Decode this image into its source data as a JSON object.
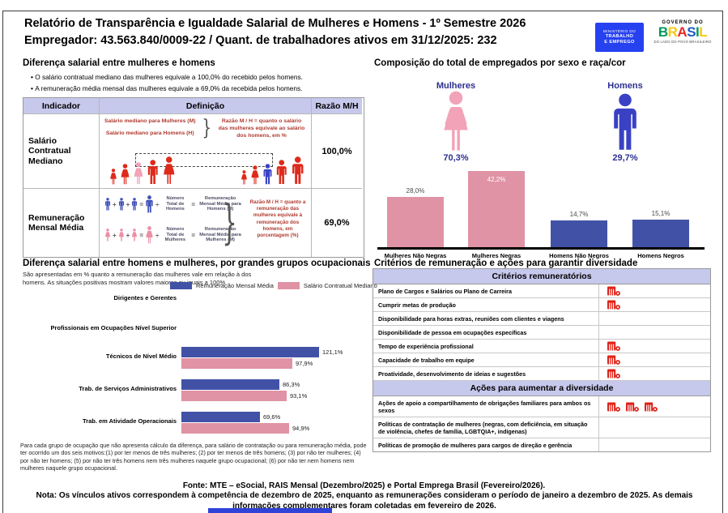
{
  "palette": {
    "lavender_header": "#C6C8EC",
    "bar_blue": "#4152A6",
    "bar_pink": "#E093A4",
    "icon_blue": "#3A41C4",
    "icon_pink": "#EE92A6",
    "figure_red": "#DE2A1B",
    "navy_text": "#2D3091",
    "mte_logo_blue": "#2641F0",
    "bottom_bar_blue": "#2F43D9"
  },
  "header": {
    "title_line1": "Relatório de Transparência e Igualdade Salarial de Mulheres e Homens - 1º Semestre 2026",
    "title_line2": "Empregador: 43.563.840/0009-22 / Quant. de trabalhadores ativos em 31/12/2025: 232",
    "mte_logo": {
      "line1": "MINISTÉRIO DO",
      "line2": "TRABALHO",
      "line3": "E EMPREGO"
    },
    "gov_logo": {
      "top": "GOVERNO DO",
      "brand": "BRASIL",
      "tagline": "DO LADO DO POVO BRASILEIRO"
    }
  },
  "salary_gap": {
    "title": "Diferença salarial entre mulheres e homens",
    "bullets": [
      "O salário contratual mediano das mulheres equivale a 100,0% do recebido pelos homens.",
      "A remuneração média mensal das mulheres equivale a 69,0% da recebida pelos homens."
    ],
    "col_headers": [
      "Indicador",
      "Definição",
      "Razão M/H"
    ],
    "row1": {
      "indicator": "Salário Contratual Mediano",
      "def_women": "Salário mediano para Mulheres (M)",
      "def_men": "Salário mediano para Homens (H)",
      "note": "Razão M / H = quanto o salário das mulheres equivale ao salário dos homens, em %",
      "ratio": "100,0%"
    },
    "row2": {
      "indicator": "Remuneração Mensal Média",
      "men_divisor": "Número Total de Homens",
      "men_result": "Remuneração Mensal Média para Homens (H)",
      "women_divisor": "Número Total de Mulheres",
      "women_result": "Remuneração Mensal Média para Mulheres (M)",
      "note": "Razão M / H = quanto a remuneração das mulheres equivale à remuneração dos homens, em porcentagem (%)",
      "ratio": "69,0%"
    }
  },
  "composition": {
    "title": "Composição do total de empregados por sexo e raça/cor",
    "women_label": "Mulheres",
    "women_pct": "70,3%",
    "men_label": "Homens",
    "men_pct": "29,7%"
  },
  "occupational": {
    "title": "Diferença salarial entre homens e mulheres, por grandes grupos ocupacionais",
    "subtitle": "São apresentadas em % quanto a remuneração das mulheres vale em relação à dos homens. As situações positivas mostram valores maiores ou iguais a 100%",
    "footnote": "Para cada grupo de ocupação que não apresenta cálculo da diferença, para salário de contratação ou para remuneração média, pode ter ocorrido um dos seis motivos:(1) por ter menos de três mulheres; (2) por ter menos de três homens; (3) por não ter mulheres; (4) por não ter homens; (5) por não ter três homens nem três mulheres naquele grupo ocupacional; (6) por não ter nem homens nem mulheres naquele grupo ocupacional."
  },
  "criteria": {
    "title": "Critérios de remuneração e ações para garantir diversidade",
    "remuneratorios_header": "Critérios remuneratórios",
    "remuneratorios": [
      {
        "label": "Plano de Cargos e Salários ou Plano de Carreira",
        "icons": 1
      },
      {
        "label": "Cumprir metas de produção",
        "icons": 1
      },
      {
        "label": "Disponibilidade para horas extras, reuniões com clientes e viagens",
        "icons": 0
      },
      {
        "label": "Disponibilidade de pessoa em ocupações específicas",
        "icons": 0
      },
      {
        "label": "Tempo de experiência profissional",
        "icons": 1
      },
      {
        "label": "Capacidade de trabalho em equipe",
        "icons": 1
      },
      {
        "label": "Proatividade, desenvolvimento de ideias e sugestões",
        "icons": 1
      }
    ],
    "acoes_header": "Ações para aumentar a diversidade",
    "acoes": [
      {
        "label": "Ações de apoio a compartilhamento de obrigações familiares para ambos os sexos",
        "icons": 3
      },
      {
        "label": "Políticas de contratação de mulheres (negras, com deficiência, em situação de violência, chefes de família, LGBTQIA+, indígenas)",
        "icons": 0
      },
      {
        "label": "Políticas de promoção de mulheres para cargos de direção e gerência",
        "icons": 0
      }
    ]
  },
  "footer": {
    "fonte": "Fonte: MTE – eSocial, RAIS Mensal (Dezembro/2025) e Portal Emprega Brasil (Fevereiro/2026).",
    "nota": "Nota: Os vínculos ativos correspondem à competência de dezembro de 2025, enquanto as remunerações consideram o período de janeiro a dezembro de 2025. As demais informações complementares foram coletadas em fevereiro de 2026."
  },
  "chart_data": [
    {
      "type": "bar",
      "title": "Composição do total de empregados por sexo e raça/cor",
      "categories": [
        "Mulheres Não Negras",
        "Mulheres Negras",
        "Homens Não Negros",
        "Homens Negros"
      ],
      "values": [
        28.0,
        42.2,
        14.7,
        15.1
      ],
      "value_labels": [
        "28,0%",
        "42,2%",
        "14,7%",
        "15,1%"
      ],
      "colors": [
        "#E093A4",
        "#E093A4",
        "#4152A6",
        "#4152A6"
      ],
      "label_inside": [
        false,
        true,
        false,
        false
      ],
      "ylim": [
        0,
        45
      ],
      "group_totals": {
        "women_pct": 70.3,
        "men_pct": 29.7
      }
    },
    {
      "type": "bar-horizontal",
      "title": "Diferença salarial entre homens e mulheres, por grandes grupos ocupacionais",
      "categories": [
        "Dirigentes e Gerentes",
        "Profissionais em Ocupações Nível Superior",
        "Técnicos de Nível Médio",
        "Trab. de Serviços Administrativos",
        "Trab. em Atividade Operacionais"
      ],
      "series": [
        {
          "name": "Remuneração Mensal Média",
          "color": "#4152A6",
          "values": [
            null,
            null,
            121.1,
            86.3,
            69.6
          ],
          "labels": [
            null,
            null,
            "121,1%",
            "86,3%",
            "69,6%"
          ]
        },
        {
          "name": "Salário Contratual Mediano",
          "color": "#E093A4",
          "values": [
            null,
            null,
            97.9,
            93.1,
            94.9
          ],
          "labels": [
            null,
            null,
            "97,9%",
            "93,1%",
            "94,9%"
          ]
        }
      ],
      "xlim": [
        0,
        140
      ]
    }
  ]
}
